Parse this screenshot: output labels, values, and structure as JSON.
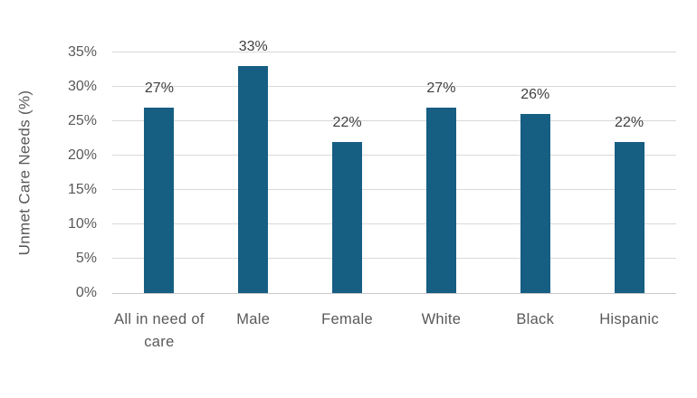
{
  "chart_data": {
    "type": "bar",
    "title": "",
    "categories": [
      "All in need of care",
      "Male",
      "Female",
      "White",
      "Black",
      "Hispanic"
    ],
    "values": [
      27,
      33,
      22,
      27,
      26,
      22
    ],
    "data_labels": [
      "27%",
      "33%",
      "22%",
      "27%",
      "26%",
      "22%"
    ],
    "xlabel": "",
    "ylabel": "Unmet Care Needs (%)",
    "ylim": [
      0,
      35
    ],
    "ytick_step": 5,
    "ytick_labels": [
      "0%",
      "5%",
      "10%",
      "15%",
      "20%",
      "25%",
      "30%",
      "35%"
    ],
    "grid": true,
    "legend": false,
    "colors": {
      "bar": "#175e83",
      "gridline": "#d9d9d9",
      "axis_line": "#c9c9c9",
      "axis_text": "#595959",
      "data_label_text": "#3f3f3f"
    }
  }
}
